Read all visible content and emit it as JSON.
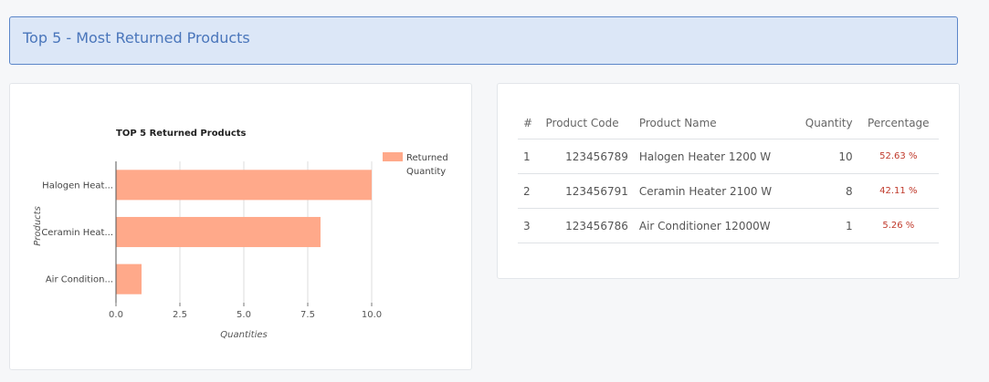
{
  "header": {
    "title": "Top 5 - Most Returned Products"
  },
  "chart_data": {
    "type": "bar",
    "orientation": "horizontal",
    "title": "TOP 5 Returned Products",
    "xlabel": "Quantities",
    "ylabel": "Products",
    "categories": [
      "Halogen Heat...",
      "Ceramin Heat...",
      "Air Condition..."
    ],
    "series": [
      {
        "name": "Returned Quantity",
        "values": [
          10,
          8,
          1
        ],
        "color": "#ffa98a"
      }
    ],
    "legend_label_lines": [
      "Returned",
      "Quantity"
    ],
    "xlim": [
      0,
      10
    ],
    "x_ticks": [
      0,
      2.5,
      5,
      7.5,
      10
    ],
    "x_tick_labels": [
      "0.0",
      "2.5",
      "5.0",
      "7.5",
      "10.0"
    ],
    "grid": true,
    "legend_position": "top-right"
  },
  "table": {
    "headers": [
      "#",
      "Product Code",
      "Product Name",
      "Quantity",
      "Percentage"
    ],
    "rows": [
      {
        "idx": "1",
        "code": "123456789",
        "name": "Halogen Heater 1200 W",
        "qty": "10",
        "pct": "52.63 %"
      },
      {
        "idx": "2",
        "code": "123456791",
        "name": "Ceramin Heater 2100 W",
        "qty": "8",
        "pct": "42.11 %"
      },
      {
        "idx": "3",
        "code": "123456786",
        "name": "Air Conditioner 12000W",
        "qty": "1",
        "pct": "5.26 %"
      }
    ]
  }
}
